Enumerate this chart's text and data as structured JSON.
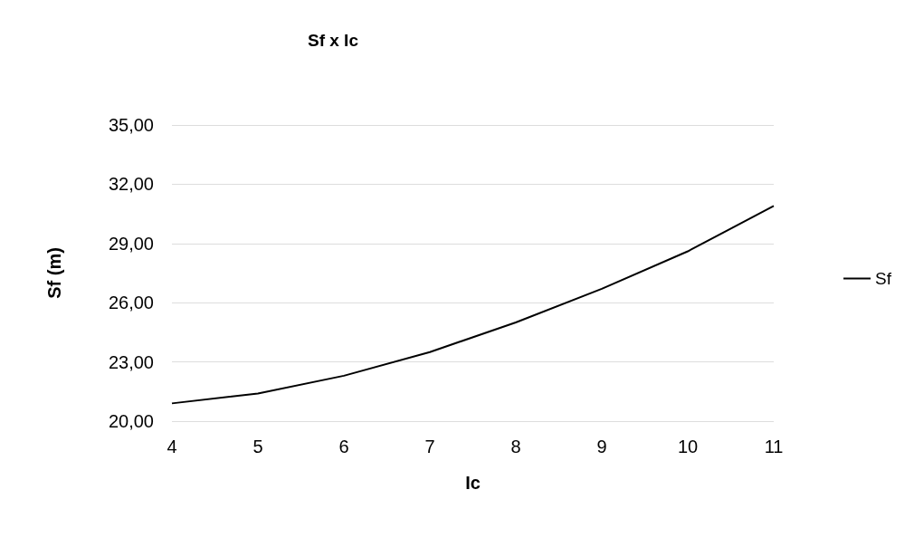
{
  "chart_data": {
    "type": "line",
    "title": "Sf x Ic",
    "xlabel": "Ic",
    "ylabel": "Sf (m)",
    "categories": [
      "4",
      "5",
      "6",
      "7",
      "8",
      "9",
      "10",
      "11"
    ],
    "series": [
      {
        "name": "Sf",
        "color": "#000000",
        "values": [
          20.9,
          21.4,
          22.3,
          23.5,
          25.0,
          26.7,
          28.6,
          30.9
        ]
      }
    ],
    "ylim": [
      20,
      35
    ],
    "yticks": [
      {
        "value": 20,
        "label": "20,00"
      },
      {
        "value": 23,
        "label": "23,00"
      },
      {
        "value": 26,
        "label": "26,00"
      },
      {
        "value": 29,
        "label": "29,00"
      },
      {
        "value": 32,
        "label": "32,00"
      },
      {
        "value": 35,
        "label": "35,00"
      }
    ],
    "grid": "y",
    "legend": "right",
    "marker": "none",
    "line_style": "solid"
  }
}
